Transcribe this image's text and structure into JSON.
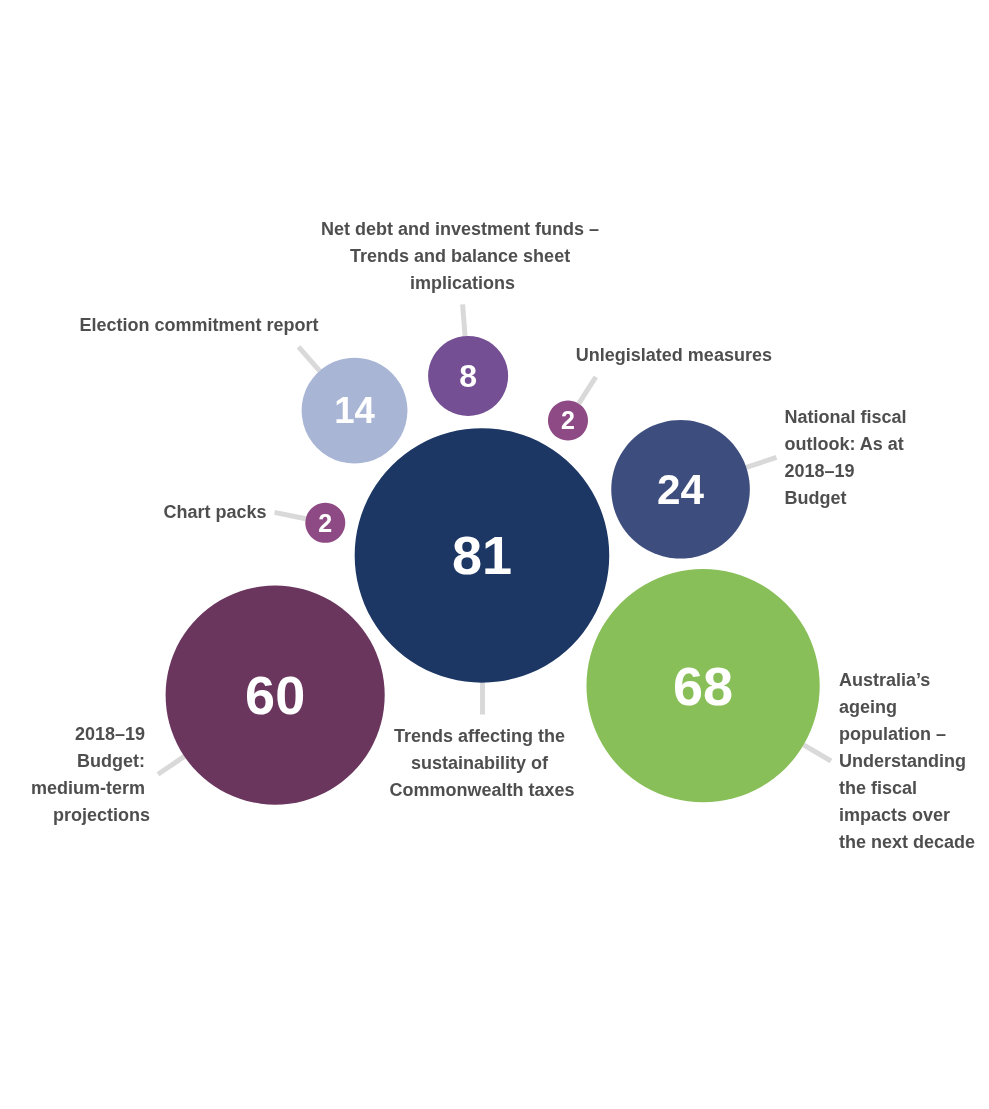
{
  "chart_data": {
    "type": "other",
    "categories": [
      "Trends affecting the sustainability of Commonwealth taxes",
      "2018–19 Budget: medium-term projections",
      "Chart packs",
      "Election commitment report",
      "Net debt and investment funds – Trends and balance sheet implications",
      "Unlegislated measures",
      "National fiscal outlook: As at 2018–19 Budget",
      "Australia’s ageing population – Understanding the fiscal impacts over the next decade"
    ],
    "values": [
      81,
      60,
      2,
      14,
      8,
      2,
      24,
      68
    ],
    "colors": [
      "#1d3765",
      "#6a365e",
      "#8e4a84",
      "#a8b5d5",
      "#744f93",
      "#8e4a84",
      "#3d4d7e",
      "#88bf58"
    ],
    "data_labels": true
  }
}
